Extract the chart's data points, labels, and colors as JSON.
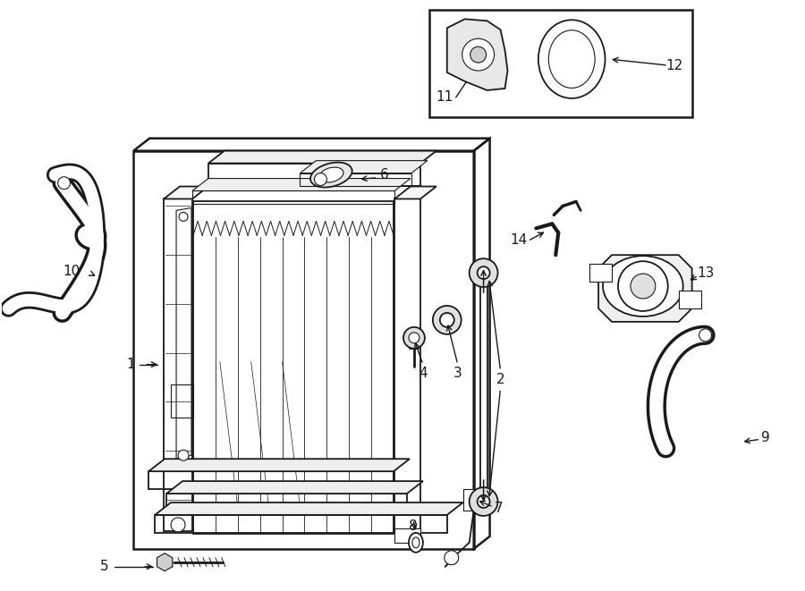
{
  "background_color": "#ffffff",
  "line_color": "#1a1a1a",
  "fig_width": 9.0,
  "fig_height": 6.61,
  "dpi": 100,
  "lw_main": 1.3,
  "lw_thin": 0.8,
  "lw_thick": 1.8
}
